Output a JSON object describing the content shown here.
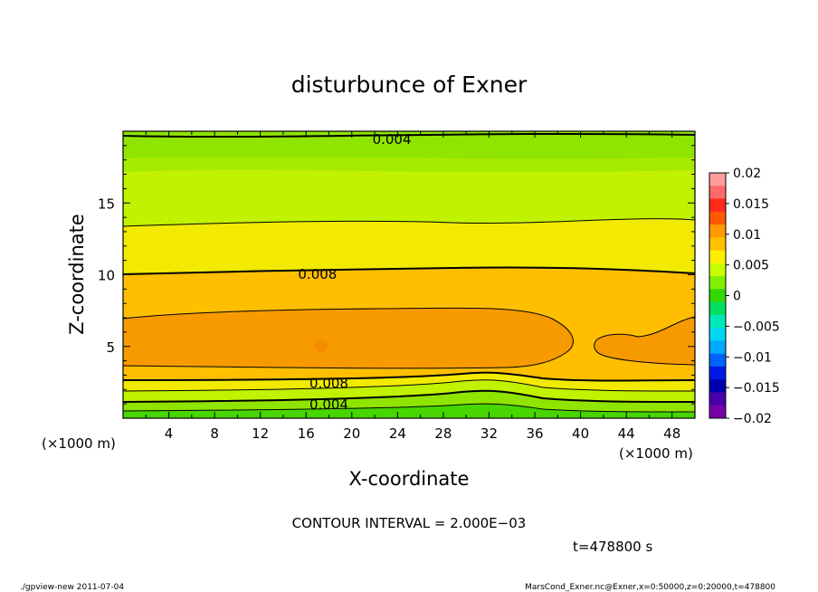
{
  "chart_data": {
    "type": "heatmap",
    "title": "disturbunce of Exner",
    "xlabel": "X-coordinate",
    "ylabel": "Z-coordinate",
    "x_unit_left": "(×1000 m)",
    "x_unit_right": "(×1000 m)",
    "xlim": [
      0,
      50
    ],
    "ylim": [
      0,
      20
    ],
    "x_ticks": [
      "4",
      "8",
      "12",
      "16",
      "20",
      "24",
      "28",
      "32",
      "36",
      "40",
      "44",
      "48"
    ],
    "x_tick_values": [
      4,
      8,
      12,
      16,
      20,
      24,
      28,
      32,
      36,
      40,
      44,
      48
    ],
    "y_ticks": [
      "5",
      "10",
      "15"
    ],
    "y_tick_values": [
      5,
      10,
      15
    ],
    "contour_labels": [
      {
        "text": "0.004",
        "x": 23.5,
        "z": 19.5
      },
      {
        "text": "0.008",
        "x": 17,
        "z": 10.1
      },
      {
        "text": "0.008",
        "x": 18,
        "z": 2.5
      },
      {
        "text": "0.004",
        "x": 18,
        "z": 1.0
      }
    ],
    "colorbar": {
      "ticks": [
        "0.02",
        "0.015",
        "0.01",
        "0.005",
        "0",
        "−0.005",
        "−0.01",
        "−0.015",
        "−0.02"
      ],
      "colors": [
        "#ff9c9c",
        "#ff6a6a",
        "#ff2a1a",
        "#ff5a00",
        "#ff9a00",
        "#ffc000",
        "#fff000",
        "#c8ff00",
        "#80f000",
        "#30d800",
        "#00e060",
        "#00e8b8",
        "#00d8f0",
        "#00a8ff",
        "#0064ff",
        "#0018e8",
        "#0000b0",
        "#4800a8",
        "#7800a8"
      ]
    },
    "bands": [
      {
        "level": "0.010-0.012",
        "color": "#f79a00"
      },
      {
        "level": "0.008-0.010",
        "color": "#ffbf00"
      },
      {
        "level": "0.006-0.008",
        "color": "#f2ea00"
      },
      {
        "level": "0.004-0.006",
        "color": "#c1f200"
      },
      {
        "level": "0.002-0.004",
        "color": "#8fe400"
      },
      {
        "level": "0.000-0.002",
        "color": "#47d600"
      }
    ]
  },
  "contour_interval": "CONTOUR INTERVAL = 2.000E−03",
  "time_label": "t=478800 s",
  "footer_left": "./gpview-new   2011-07-04",
  "footer_right": "MarsCond_Exner.nc@Exner,x=0:50000,z=0:20000,t=478800"
}
